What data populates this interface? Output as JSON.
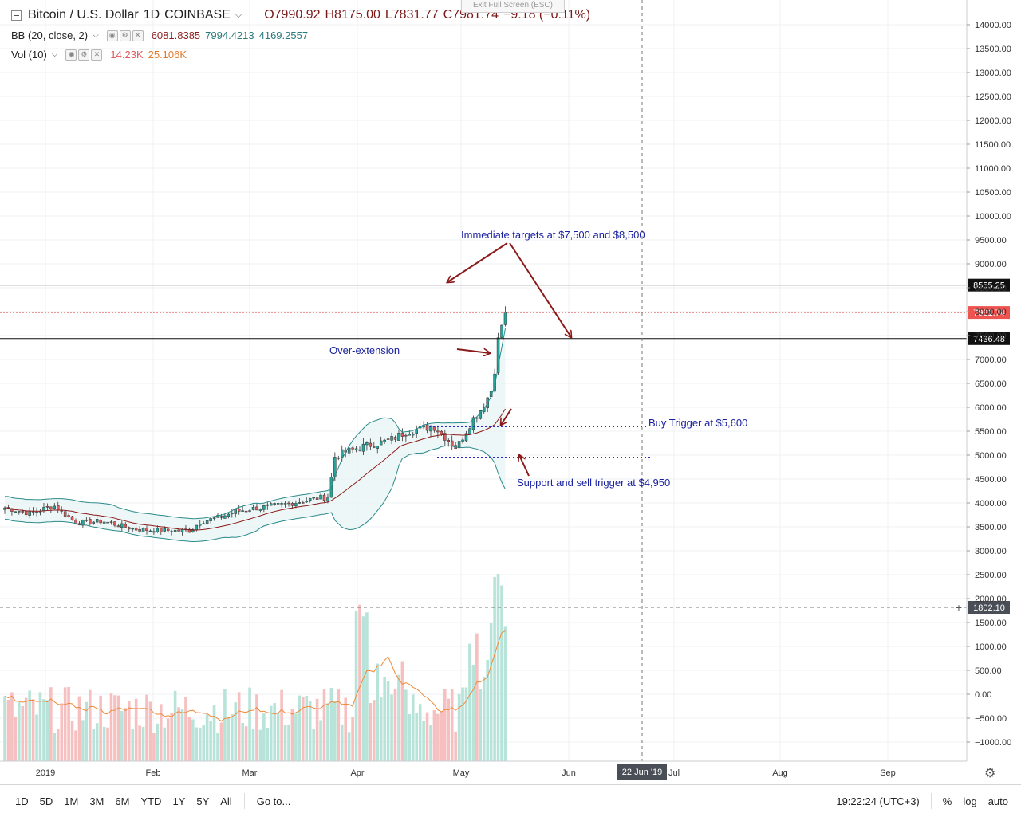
{
  "header": {
    "collapse_icon": "minus-square-icon",
    "symbol": "Bitcoin / U.S. Dollar",
    "interval": "1D",
    "exchange": "COINBASE",
    "open": "O7990.92",
    "high": "H8175.00",
    "low": "L7831.77",
    "close": "C7981.74",
    "change": "−9.18 (−0.11%)"
  },
  "indicators": {
    "bb": {
      "label": "BB (20, close, 2)",
      "v1": "6081.8385",
      "v2": "7994.4213",
      "v3": "4169.2557"
    },
    "vol": {
      "label": "Vol (10)",
      "v1": "14.23K",
      "v2": "25.106K"
    }
  },
  "exit_fullscreen": "Exit Full Screen (ESC)",
  "annotations": {
    "targets": "Immediate targets at $7,500 and $8,500",
    "overext": "Over-extension",
    "buy": "Buy Trigger at $5,600",
    "support": "Support and sell trigger at $4,950"
  },
  "chart_data": {
    "type": "candlestick",
    "price_axis": {
      "min": -1200,
      "max": 14300,
      "ticks": [
        14000,
        13500,
        13000,
        12500,
        12000,
        11500,
        11000,
        10500,
        10000,
        9500,
        9000,
        8500,
        8000,
        7500,
        7000,
        6500,
        6000,
        5500,
        5000,
        4500,
        4000,
        3500,
        3000,
        2500,
        2000,
        1500,
        1000,
        500,
        0,
        -500,
        -1000
      ]
    },
    "price_labels": {
      "resistance": "8555.25",
      "last": "7981.74",
      "support": "7436.48",
      "crosshair": "1802.10"
    },
    "levels": {
      "resistance": 8555.25,
      "last": 7981.74,
      "support": 7436.48,
      "buy_trigger": 5600,
      "sell_trigger": 4950
    },
    "time_labels": [
      "2019",
      "Feb",
      "Mar",
      "Apr",
      "May",
      "Jun",
      "22 Jun '19",
      "Jul",
      "Aug",
      "Sep"
    ],
    "colors": {
      "up": "#26a69a",
      "down": "#e05a5a",
      "bb_mid": "#8b1a1a",
      "bb_band": "#2a8a8a",
      "vol_ma": "#f08a3a",
      "ann_arrow": "#8b1a1a",
      "ann_text": "#1a22a0"
    }
  },
  "bottom_bar": {
    "timeframes": [
      "1D",
      "5D",
      "1M",
      "3M",
      "6M",
      "YTD",
      "1Y",
      "5Y",
      "All"
    ],
    "goto": "Go to...",
    "clock": "19:22:24 (UTC+3)",
    "percent": "%",
    "log": "log",
    "auto": "auto",
    "settings_icon": "gear-icon"
  }
}
